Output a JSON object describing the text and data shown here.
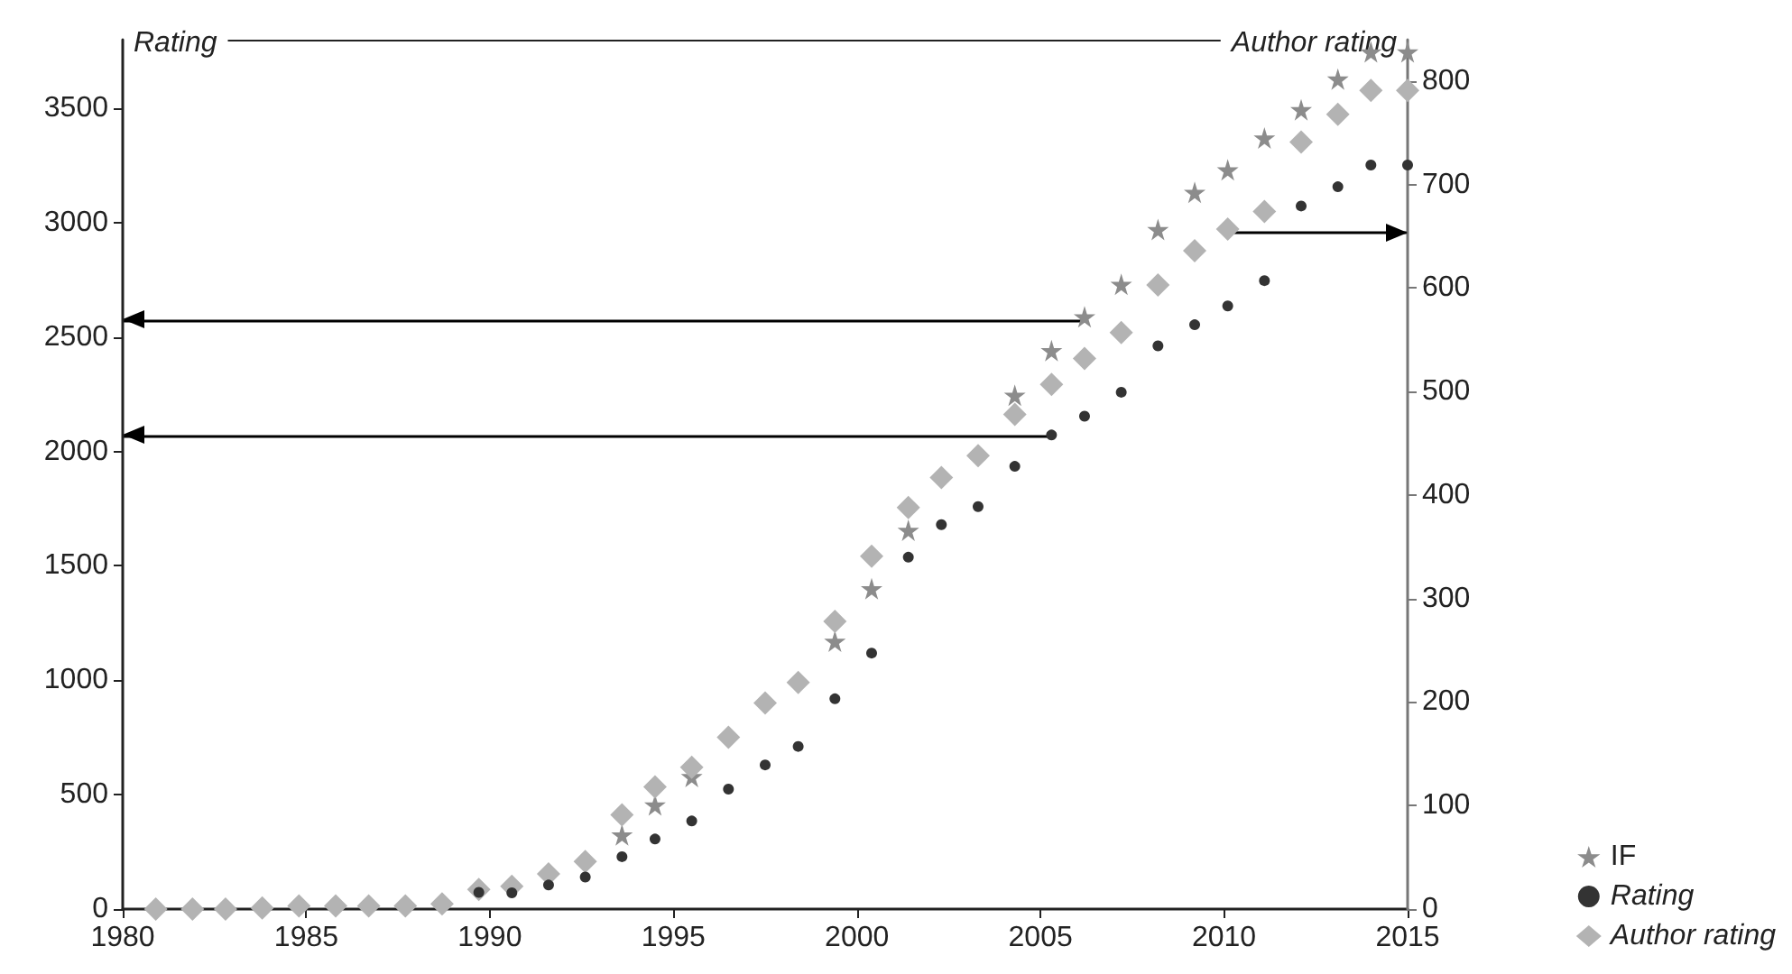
{
  "chart_data": {
    "type": "scatter",
    "ylabel": "Rating",
    "y2label": "Author rating",
    "x": [
      1980.9,
      1981.9,
      1982.8,
      1983.8,
      1984.8,
      1985.8,
      1986.7,
      1987.7,
      1988.7,
      1989.7,
      1990.6,
      1991.6,
      1992.6,
      1993.6,
      1994.5,
      1995.5,
      1996.5,
      1997.5,
      1998.4,
      1999.4,
      2000.4,
      2001.4,
      2002.3,
      2003.3,
      2004.3,
      2005.3,
      2006.2,
      2007.2,
      2008.2,
      2009.2,
      2010.1,
      2011.1,
      2012.1,
      2013.1,
      2014.0,
      2015.0
    ],
    "series": [
      {
        "name": "IF",
        "color": "#8c8c8c",
        "marker": "star",
        "values": [
          null,
          null,
          null,
          null,
          null,
          null,
          null,
          null,
          null,
          null,
          null,
          null,
          null,
          324,
          455,
          579,
          null,
          null,
          null,
          1171,
          1400,
          1656,
          null,
          null,
          2246,
          2441,
          2589,
          2731,
          2970,
          3133,
          3231,
          3370,
          3494,
          3628,
          3747,
          3747
        ]
      },
      {
        "name": "Rating",
        "color": "#333333",
        "marker": "circle",
        "values": [
          null,
          null,
          null,
          null,
          null,
          null,
          null,
          null,
          null,
          73,
          71,
          105,
          140,
          229,
          306,
          385,
          524,
          630,
          711,
          919,
          1119,
          1538,
          1680,
          1759,
          1935,
          2072,
          2154,
          2259,
          2462,
          2554,
          2636,
          2747,
          3073,
          3157,
          3252,
          3252
        ]
      },
      {
        "name": "Author rating",
        "color": "#b3b3b3",
        "marker": "diamond",
        "axis": "y2",
        "values": [
          0,
          0,
          0,
          1,
          3,
          3,
          3,
          3,
          5,
          19,
          22,
          34,
          46,
          91,
          118,
          137,
          166,
          199,
          219,
          278,
          341,
          388,
          417,
          438,
          478,
          507,
          532,
          557,
          603,
          636,
          657,
          674,
          741,
          768,
          791,
          791
        ]
      }
    ],
    "xlim": [
      1980,
      2015
    ],
    "xticks": [
      1980,
      1985,
      1990,
      1995,
      2000,
      2005,
      2010,
      2015
    ],
    "ylim": [
      0,
      3800
    ],
    "yticks": [
      0,
      500,
      1000,
      1500,
      2000,
      2500,
      3000,
      3500
    ],
    "y2lim": [
      0,
      840
    ],
    "y2ticks": [
      0,
      100,
      200,
      300,
      400,
      500,
      600,
      700,
      800
    ],
    "ref_lines": [
      {
        "axis": "y",
        "value": 2575,
        "color": "#000000"
      },
      {
        "axis": "y",
        "value": 2070,
        "color": "#000000"
      },
      {
        "axis": "y2",
        "value": 654,
        "color": "#000000"
      }
    ],
    "grid": false,
    "legend": "bottom right"
  }
}
